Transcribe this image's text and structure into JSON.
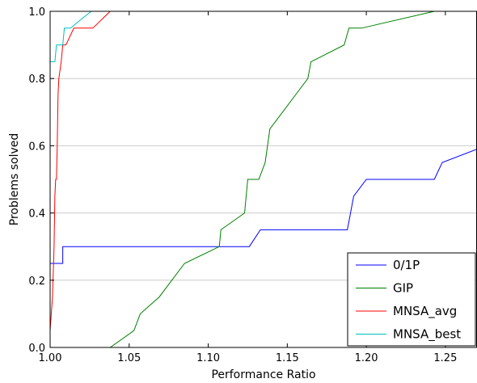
{
  "chart_data": {
    "type": "line",
    "xlabel": "Performance Ratio",
    "ylabel": "Problems solved",
    "xlim": [
      1.0,
      1.27
    ],
    "ylim": [
      0.0,
      1.0
    ],
    "xticks": [
      1.0,
      1.05,
      1.1,
      1.15,
      1.2,
      1.25
    ],
    "xtick_labels": [
      "1.00",
      "1.05",
      "1.10",
      "1.15",
      "1.20",
      "1.25"
    ],
    "yticks": [
      0.0,
      0.2,
      0.4,
      0.6,
      0.8,
      1.0
    ],
    "ytick_labels": [
      "0.0",
      "0.2",
      "0.4",
      "0.6",
      "0.8",
      "1.0"
    ],
    "grid": "horizontal",
    "legend_position": "bottom-right",
    "series": [
      {
        "name": "0/1P",
        "color": "#0000ff",
        "points": [
          [
            1.0,
            0.25
          ],
          [
            1.008,
            0.25
          ],
          [
            1.008,
            0.3
          ],
          [
            1.1075,
            0.3
          ],
          [
            1.1075,
            0.3
          ],
          [
            1.126,
            0.3
          ],
          [
            1.133,
            0.35
          ],
          [
            1.188,
            0.35
          ],
          [
            1.19,
            0.4
          ],
          [
            1.192,
            0.45
          ],
          [
            1.2,
            0.5
          ],
          [
            1.243,
            0.5
          ],
          [
            1.248,
            0.55
          ],
          [
            1.27,
            0.59
          ]
        ]
      },
      {
        "name": "GIP",
        "color": "#008000",
        "points": [
          [
            1.0,
            0.0
          ],
          [
            1.038,
            0.0
          ],
          [
            1.053,
            0.05
          ],
          [
            1.057,
            0.1
          ],
          [
            1.069,
            0.15
          ],
          [
            1.085,
            0.25
          ],
          [
            1.107,
            0.3
          ],
          [
            1.108,
            0.35
          ],
          [
            1.123,
            0.4
          ],
          [
            1.125,
            0.5
          ],
          [
            1.132,
            0.5
          ],
          [
            1.136,
            0.55
          ],
          [
            1.139,
            0.65
          ],
          [
            1.147,
            0.7
          ],
          [
            1.155,
            0.75
          ],
          [
            1.163,
            0.8
          ],
          [
            1.165,
            0.85
          ],
          [
            1.186,
            0.9
          ],
          [
            1.189,
            0.95
          ],
          [
            1.197,
            0.95
          ],
          [
            1.243,
            1.0
          ]
        ]
      },
      {
        "name": "MNSA_avg",
        "color": "#ff0000",
        "points": [
          [
            1.0,
            0.05
          ],
          [
            1.0015,
            0.15
          ],
          [
            1.0025,
            0.3
          ],
          [
            1.003,
            0.45
          ],
          [
            1.0035,
            0.5
          ],
          [
            1.004,
            0.5
          ],
          [
            1.0045,
            0.6
          ],
          [
            1.005,
            0.75
          ],
          [
            1.0055,
            0.8
          ],
          [
            1.007,
            0.85
          ],
          [
            1.008,
            0.9
          ],
          [
            1.01,
            0.9
          ],
          [
            1.015,
            0.95
          ],
          [
            1.027,
            0.95
          ],
          [
            1.038,
            1.0
          ]
        ]
      },
      {
        "name": "MNSA_best",
        "color": "#00bfbf",
        "points": [
          [
            1.0,
            0.85
          ],
          [
            1.003,
            0.85
          ],
          [
            1.004,
            0.9
          ],
          [
            1.008,
            0.9
          ],
          [
            1.009,
            0.95
          ],
          [
            1.013,
            0.95
          ],
          [
            1.018,
            0.97
          ],
          [
            1.026,
            1.0
          ]
        ]
      }
    ]
  }
}
